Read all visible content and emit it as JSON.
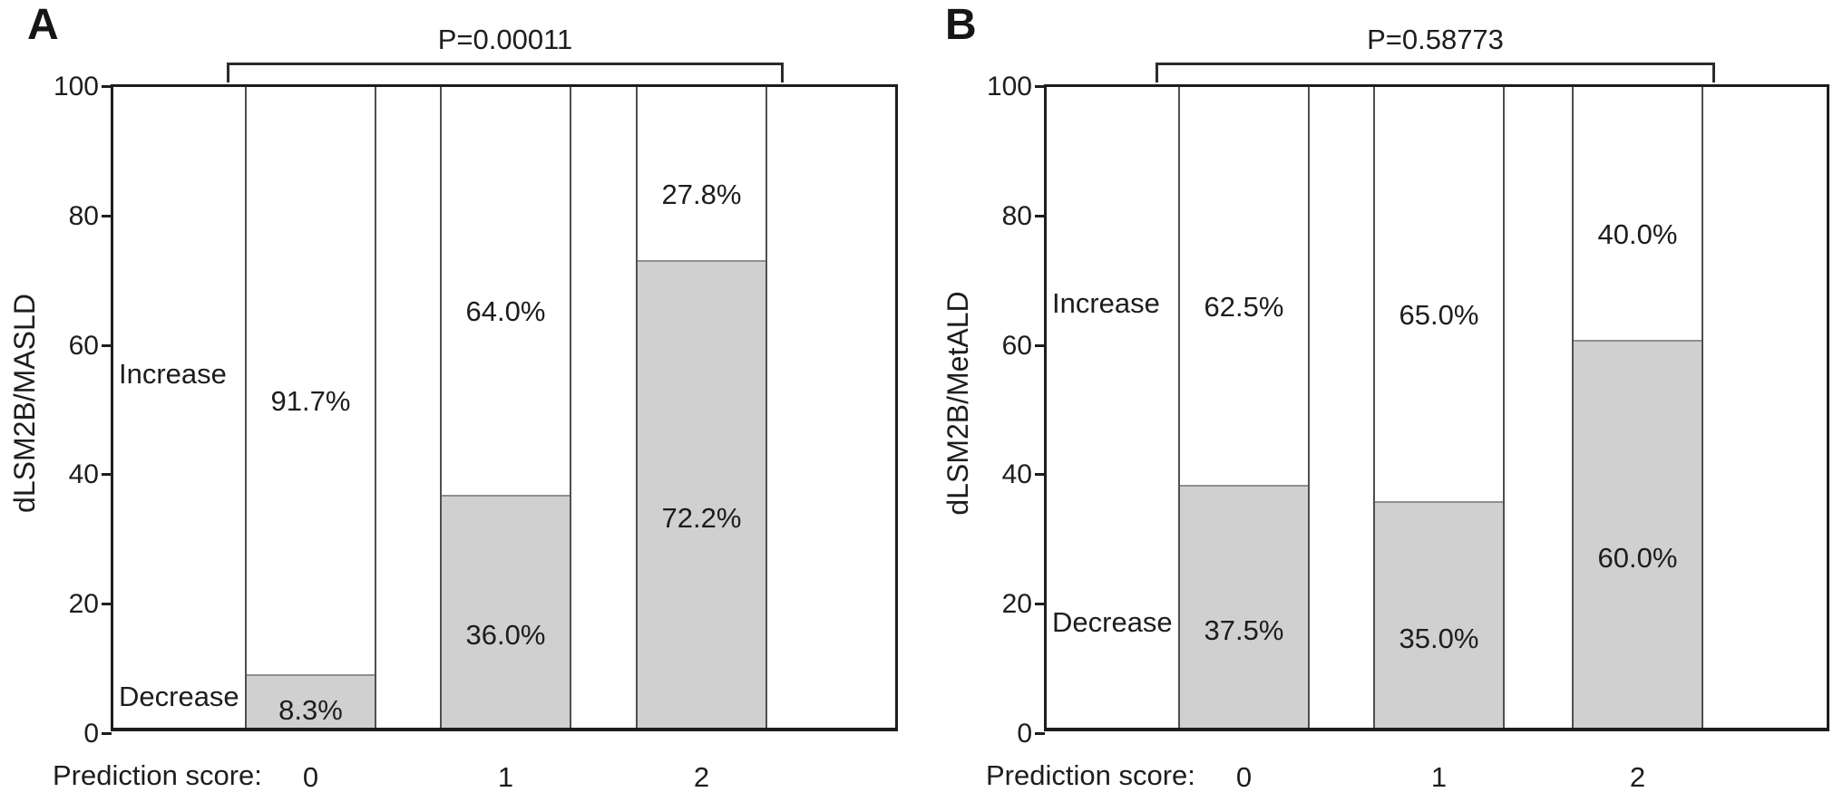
{
  "figure": {
    "description": "Two-panel stacked bar figure of dLSM2B change proportions by prediction score"
  },
  "colors": {
    "background": "#ffffff",
    "text": "#1d1d1d",
    "frame": "#1d1d1d",
    "bar_border": "#4f4f4f",
    "decrease_fill": "#d0d0d0",
    "increase_fill": "#ffffff",
    "segment_divider": "#8f8f8f",
    "bracket": "#2b2b2b"
  },
  "chart_data": [
    {
      "type": "bar",
      "stacked": true,
      "panel": "A",
      "title": "P=0.00011",
      "ylabel": "dLSM2B/MASLD",
      "xlabel": "Prediction score:",
      "categories": [
        "0",
        "1",
        "2"
      ],
      "series": [
        {
          "name": "Decrease",
          "values": [
            8.3,
            36.0,
            72.2
          ],
          "labels": [
            "8.3%",
            "36.0%",
            "72.2%"
          ],
          "color": "#d0d0d0"
        },
        {
          "name": "Increase",
          "values": [
            91.7,
            64.0,
            27.8
          ],
          "labels": [
            "91.7%",
            "64.0%",
            "27.8%"
          ],
          "color": "#ffffff"
        }
      ],
      "ylim": [
        0,
        100
      ],
      "y_ticks": [
        0,
        20,
        40,
        60,
        80,
        100
      ],
      "grid": false,
      "legend": "inline-words-left-of-first-bar",
      "layout_hints": {
        "increase_word_at_value": 55.6,
        "decrease_word_at_value": 5.7,
        "bracket_spans_categories": [
          "0",
          "2"
        ]
      }
    },
    {
      "type": "bar",
      "stacked": true,
      "panel": "B",
      "title": "P=0.58773",
      "ylabel": "dLSM2B/MetALD",
      "xlabel": "Prediction score:",
      "categories": [
        "0",
        "1",
        "2"
      ],
      "series": [
        {
          "name": "Decrease",
          "values": [
            37.5,
            35.0,
            60.0
          ],
          "labels": [
            "37.5%",
            "35.0%",
            "60.0%"
          ],
          "color": "#d0d0d0"
        },
        {
          "name": "Increase",
          "values": [
            62.5,
            65.0,
            40.0
          ],
          "labels": [
            "62.5%",
            "65.0%",
            "40.0%"
          ],
          "color": "#ffffff"
        }
      ],
      "ylim": [
        0,
        100
      ],
      "y_ticks": [
        0,
        20,
        40,
        60,
        80,
        100
      ],
      "grid": false,
      "legend": "inline-words-left-of-first-bar",
      "layout_hints": {
        "increase_word_at_value": 66.5,
        "decrease_word_at_value": 17.2,
        "bracket_spans_categories": [
          "0",
          "2"
        ]
      }
    }
  ]
}
